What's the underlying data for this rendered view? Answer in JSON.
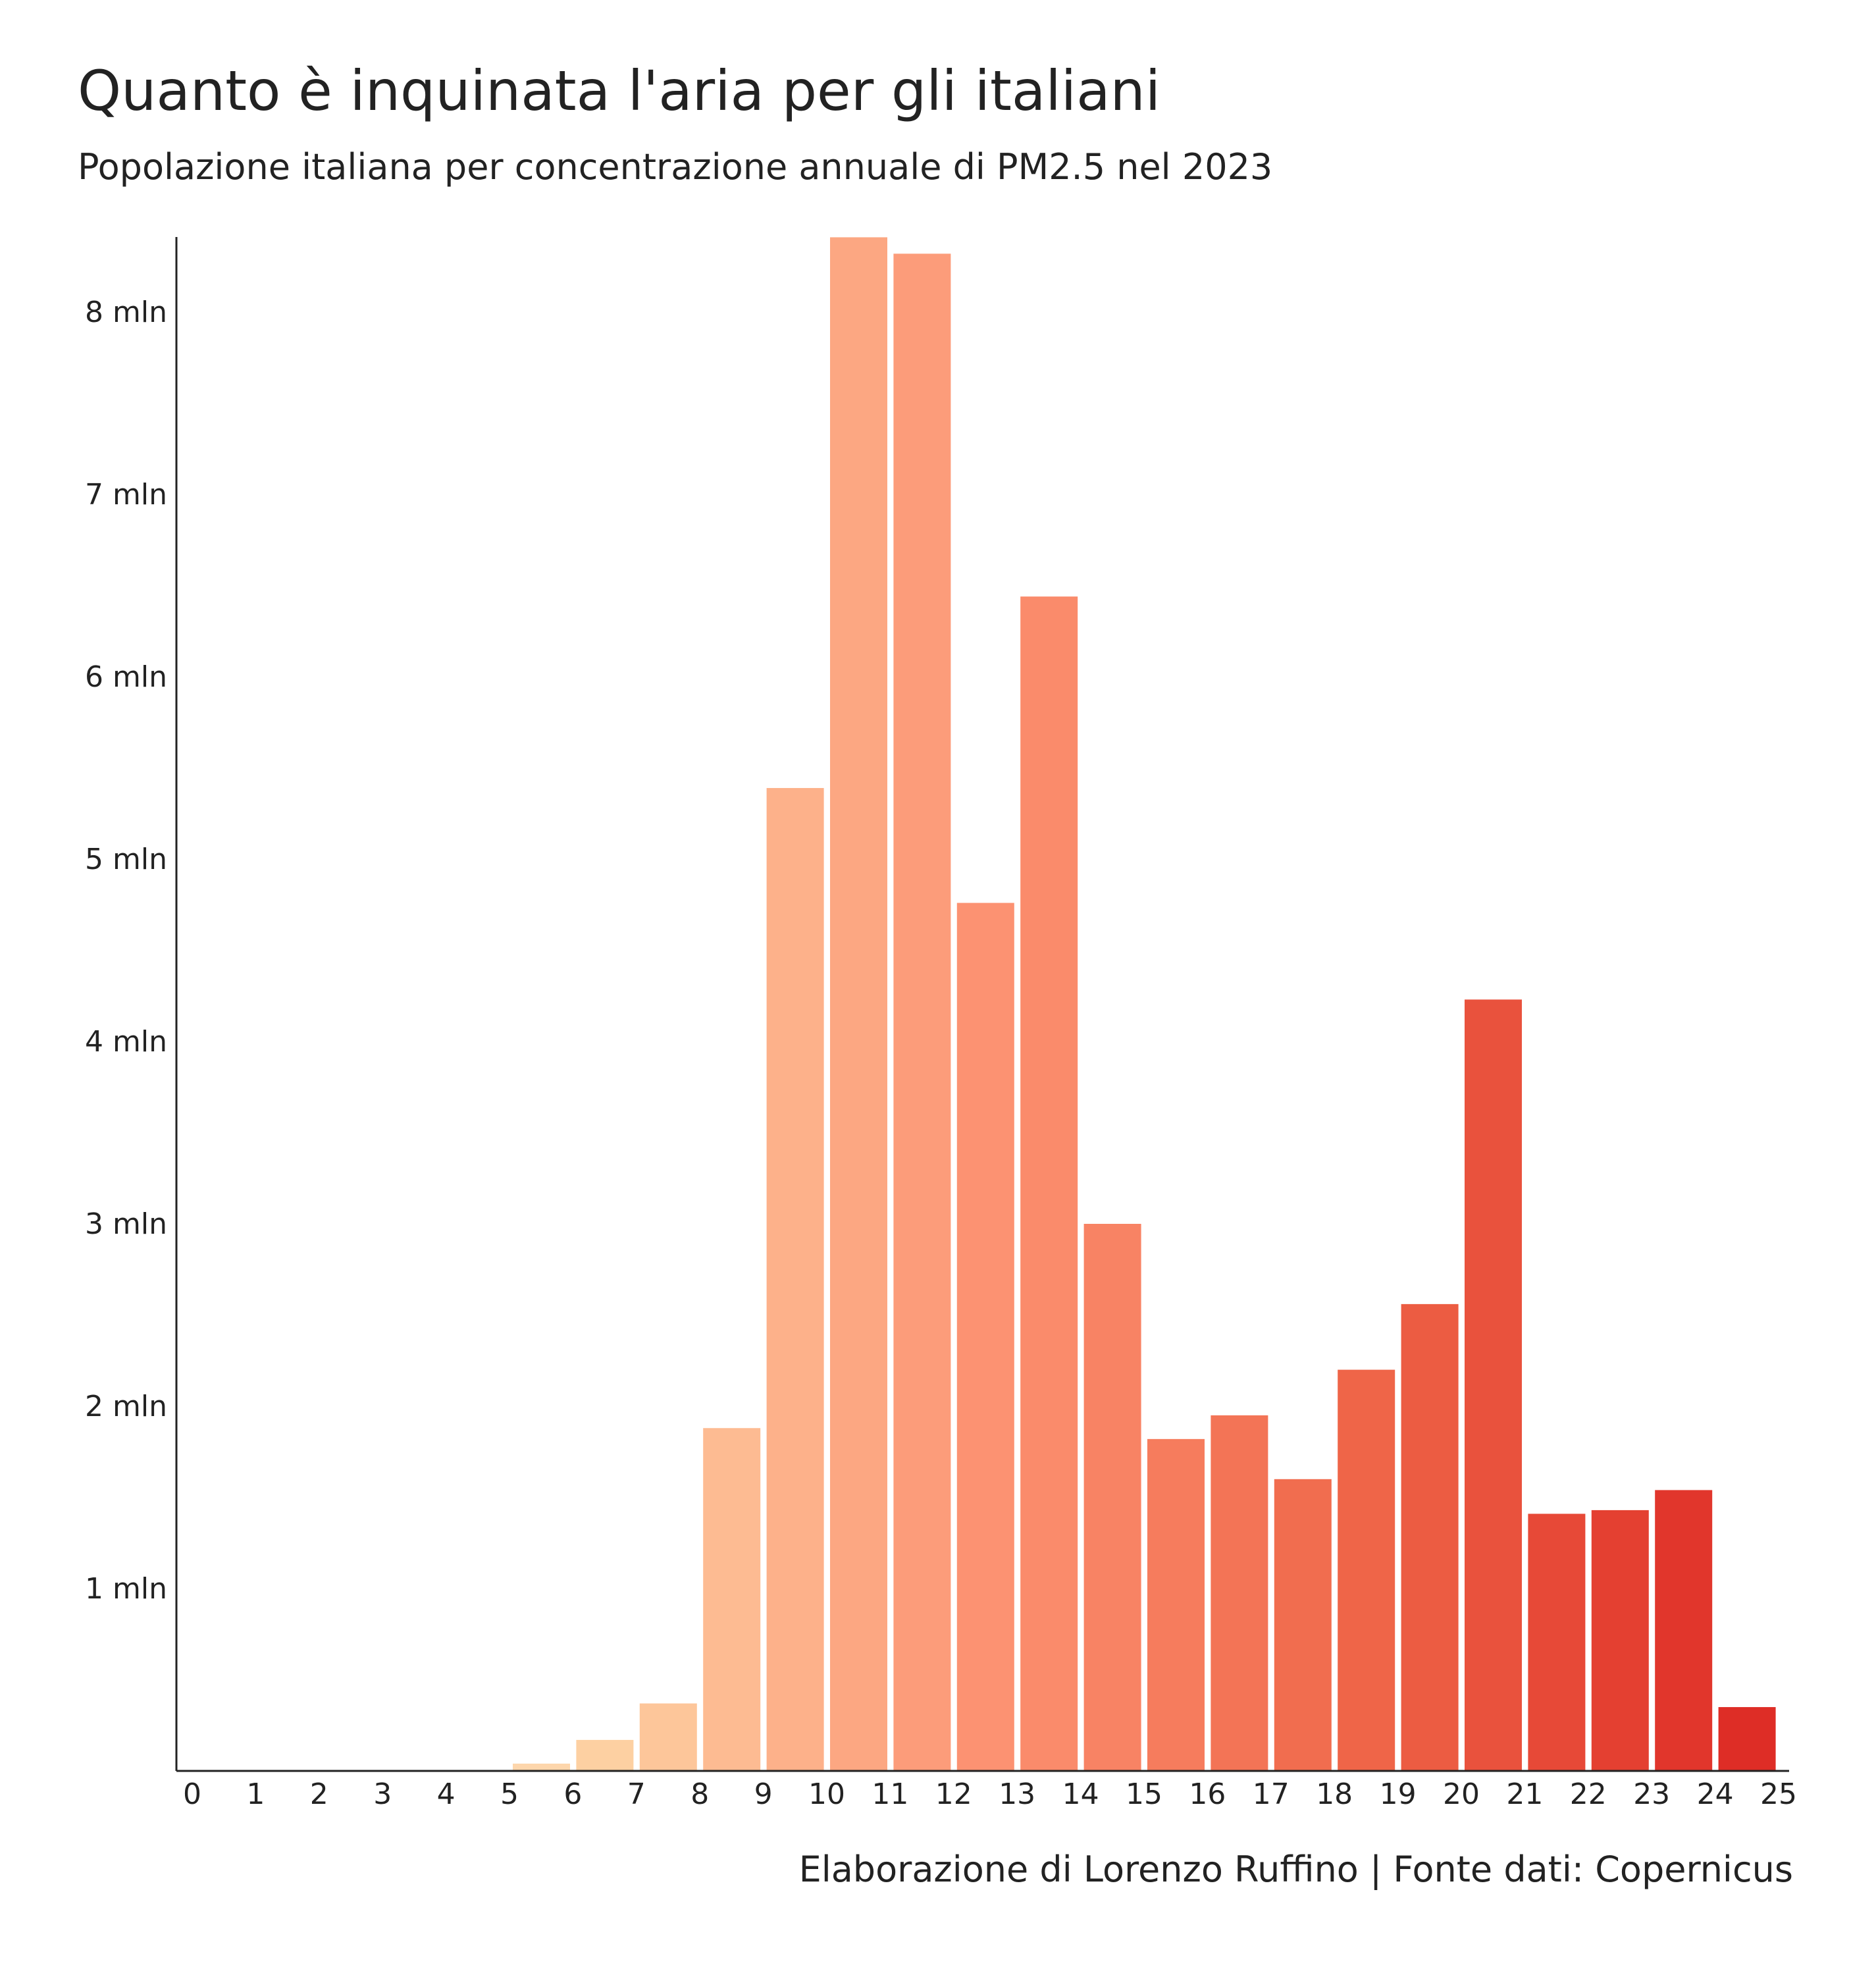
{
  "header": {
    "title": "Quanto è inquinata l'aria per gli italiani",
    "subtitle": "Popolazione italiana per concentrazione annuale di PM2.5 nel 2023"
  },
  "footer": {
    "caption": "Elaborazione di Lorenzo Ruffino | Fonte dati: Copernicus"
  },
  "chart_data": {
    "type": "bar",
    "title": "Quanto è inquinata l'aria per gli italiani",
    "subtitle": "Popolazione italiana per concentrazione annuale di PM2.5 nel 2023",
    "xlabel": "",
    "ylabel": "",
    "categories": [
      0,
      1,
      2,
      3,
      4,
      5,
      6,
      7,
      8,
      9,
      10,
      11,
      12,
      13,
      14,
      15,
      16,
      17,
      18,
      19,
      20,
      21,
      22,
      23,
      24
    ],
    "values": [
      0,
      0,
      0,
      0,
      0,
      0.04,
      0.17,
      0.37,
      1.88,
      5.39,
      8.41,
      8.32,
      4.76,
      6.44,
      3.0,
      1.82,
      1.95,
      1.6,
      2.2,
      2.56,
      4.23,
      1.41,
      1.43,
      1.54,
      0.35
    ],
    "value_unit": "mln",
    "xlim": [
      0,
      25
    ],
    "ylim": [
      0,
      8.4
    ],
    "x_ticks": [
      "0",
      "1",
      "2",
      "3",
      "4",
      "5",
      "6",
      "7",
      "8",
      "9",
      "10",
      "11",
      "12",
      "13",
      "14",
      "15",
      "16",
      "17",
      "18",
      "19",
      "20",
      "21",
      "22",
      "23",
      "24",
      "25"
    ],
    "y_ticks": [
      1,
      2,
      3,
      4,
      5,
      6,
      7,
      8
    ],
    "y_tick_labels": [
      "1 mln",
      "2 mln",
      "3 mln",
      "4 mln",
      "5 mln",
      "6 mln",
      "7 mln",
      "8 mln"
    ],
    "color_scale": [
      "#fff5e0",
      "#fdd0a2",
      "#fc9272",
      "#ef6548",
      "#de2d26"
    ],
    "grid": false,
    "legend": "none"
  }
}
